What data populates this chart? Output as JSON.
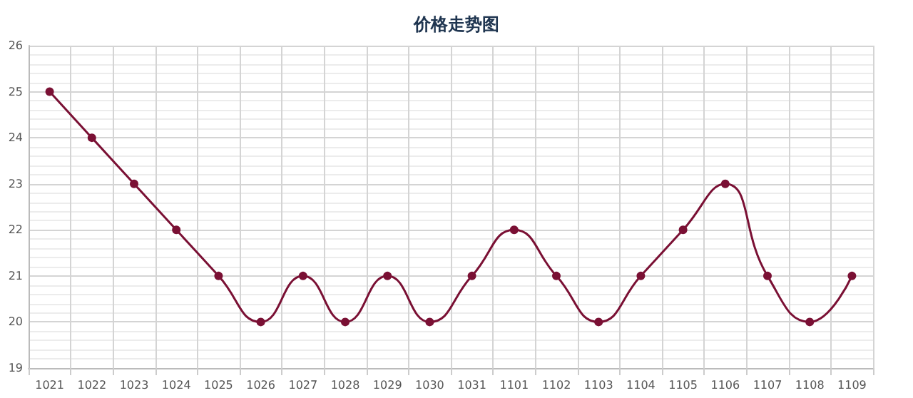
{
  "chart_data": {
    "type": "line",
    "title": "价格走势图",
    "categories": [
      "1021",
      "1022",
      "1023",
      "1024",
      "1025",
      "1026",
      "1027",
      "1028",
      "1029",
      "1030",
      "1031",
      "1101",
      "1102",
      "1103",
      "1104",
      "1105",
      "1106",
      "1107",
      "1108",
      "1109"
    ],
    "series": [
      {
        "color": "#7a1034",
        "values": [
          25,
          24,
          23,
          22,
          21,
          20,
          21,
          20,
          21,
          20,
          21,
          22,
          21,
          20,
          21,
          22,
          23,
          21,
          20,
          21
        ]
      }
    ],
    "ylim": [
      19,
      26
    ],
    "yticks": [
      19,
      20,
      21,
      22,
      23,
      24,
      25,
      26
    ],
    "grid": true,
    "marker": "circle",
    "line_style": "solid"
  }
}
